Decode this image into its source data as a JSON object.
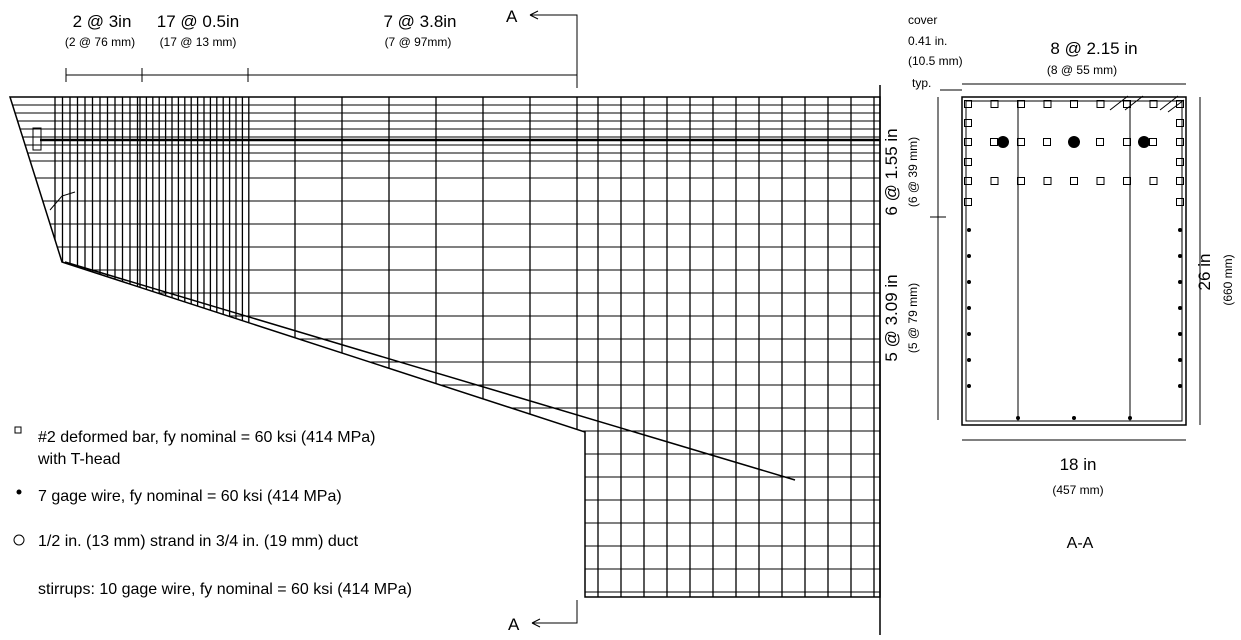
{
  "elevation": {
    "top_spacing": [
      {
        "imperial": "2 @ 3in",
        "metric": "(2 @ 76 mm)"
      },
      {
        "imperial": "17 @ 0.5in",
        "metric": "(17 @ 13 mm)"
      },
      {
        "imperial": "7 @ 3.8in",
        "metric": "(7 @ 97mm)"
      }
    ],
    "side_spacing": [
      {
        "imperial": "6 @ 1.55 in",
        "metric": "(6 @ 39 mm)"
      },
      {
        "imperial": "5 @ 3.09 in",
        "metric": "(5 @ 79 mm)"
      }
    ],
    "section_marks": [
      "A",
      "A"
    ]
  },
  "legend": {
    "items": [
      {
        "text": "#2 deformed bar, fy nominal = 60 ksi (414 MPa)",
        "text2": "with T-head"
      },
      {
        "text": "7 gage wire, fy nominal = 60 ksi (414 MPa)"
      },
      {
        "text": "1/2 in. (13 mm) strand in 3/4 in. (19 mm) duct"
      }
    ],
    "stirrups": "stirrups: 10 gage wire,  fy nominal = 60 ksi (414 MPa)"
  },
  "section": {
    "cover": [
      "cover",
      "0.41 in.",
      "(10.5 mm)",
      "typ."
    ],
    "top_spacing": {
      "imperial": "8 @ 2.15 in",
      "metric": "(8 @ 55 mm)"
    },
    "height": {
      "imperial": "26 in",
      "metric": "(660 mm)"
    },
    "width": {
      "imperial": "18 in",
      "metric": "(457 mm)"
    },
    "title": "A-A"
  }
}
